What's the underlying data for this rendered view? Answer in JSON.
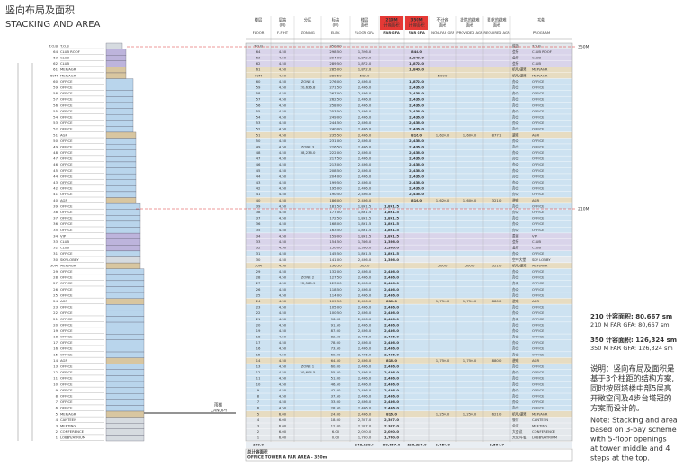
{
  "header": {
    "title": "竖向布局及面积",
    "subtitle": "STACKING AND AREA"
  },
  "table": {
    "columns": [
      {
        "cn": "楼层",
        "en": "FLOOR"
      },
      {
        "cn": "层高",
        "sub": "(M)",
        "en": "F-F HT"
      },
      {
        "cn": "分区",
        "en": "ZONING"
      },
      {
        "cn": "标高",
        "sub": "(M)",
        "en": "ELEV."
      },
      {
        "cn": "楼层",
        "sub": "面积",
        "en": "FLOOR GFA"
      },
      {
        "cn": "210M",
        "sub": "计容面积",
        "en": "FAR GFA",
        "red": true
      },
      {
        "cn": "350M",
        "sub": "计容面积",
        "en": "FAR GFA",
        "red": true
      },
      {
        "cn": "不计容",
        "sub": "面积",
        "en": "NON-FAR GFA"
      },
      {
        "cn": "提供的避难",
        "sub": "面积",
        "en": "PROVIDED AGR"
      },
      {
        "cn": "要求的避难",
        "sub": "面积",
        "en": "REQUIRED AGR"
      },
      {
        "cn": "功能",
        "en": "PROGRAM"
      }
    ],
    "rows": [
      [
        "T.O.B",
        null,
        null,
        "350.00",
        null,
        null,
        null,
        null,
        null,
        null,
        "塔顶",
        "T.O.B"
      ],
      [
        "64",
        "4.50",
        null,
        "298.50",
        "1,326.0",
        null,
        "844.0",
        null,
        null,
        null,
        "会所",
        "CLUB ROOF"
      ],
      [
        "63",
        "4.50",
        null,
        "294.00",
        "1,872.0",
        null,
        "1,840.0",
        null,
        null,
        null,
        "会所",
        "CLUB"
      ],
      [
        "62",
        "4.50",
        null,
        "289.50",
        "1,872.0",
        null,
        "1,872.0",
        null,
        null,
        null,
        "会所",
        "CLUB"
      ],
      [
        "61",
        "4.50",
        null,
        "285.00",
        "1,872.0",
        null,
        "1,840.0",
        null,
        null,
        null,
        "机电/避难",
        "MEP/AGR"
      ],
      [
        "60M",
        "4.50",
        null,
        "280.50",
        "500.0",
        null,
        null,
        "500.0",
        null,
        null,
        "机电/避难",
        "MEP/AGR"
      ],
      [
        "60",
        "4.50",
        "ZONE 4",
        "276.00",
        "2,436.0",
        null,
        "1,872.0",
        null,
        null,
        null,
        "办公",
        "OFFICE"
      ],
      [
        "59",
        "4.50",
        "20,636.8",
        "271.50",
        "2,436.0",
        null,
        "2,436.0",
        null,
        null,
        null,
        "办公",
        "OFFICE"
      ],
      [
        "58",
        "4.50",
        null,
        "267.00",
        "2,436.0",
        null,
        "2,436.0",
        null,
        null,
        null,
        "办公",
        "OFFICE"
      ],
      [
        "57",
        "4.50",
        null,
        "262.50",
        "2,436.0",
        null,
        "2,436.0",
        null,
        null,
        null,
        "办公",
        "OFFICE"
      ],
      [
        "56",
        "4.50",
        null,
        "258.00",
        "2,436.0",
        null,
        "2,436.0",
        null,
        null,
        null,
        "办公",
        "OFFICE"
      ],
      [
        "55",
        "4.50",
        null,
        "253.50",
        "2,436.0",
        null,
        "2,436.0",
        null,
        null,
        null,
        "办公",
        "OFFICE"
      ],
      [
        "54",
        "4.50",
        null,
        "249.00",
        "2,436.0",
        null,
        "2,436.0",
        null,
        null,
        null,
        "办公",
        "OFFICE"
      ],
      [
        "53",
        "4.50",
        null,
        "244.50",
        "2,436.0",
        null,
        "2,436.0",
        null,
        null,
        null,
        "办公",
        "OFFICE"
      ],
      [
        "52",
        "4.50",
        null,
        "240.00",
        "2,436.0",
        null,
        "2,436.0",
        null,
        null,
        null,
        "办公",
        "OFFICE"
      ],
      [
        "51",
        "4.50",
        null,
        "235.50",
        "2,436.0",
        null,
        "816.0",
        "1,620.0",
        "1,600.0",
        "877.1",
        "避难",
        "AGR"
      ],
      [
        "50",
        "4.50",
        null,
        "231.00",
        "2,436.0",
        null,
        "2,436.0",
        null,
        null,
        null,
        "办公",
        "OFFICE"
      ],
      [
        "49",
        "4.50",
        "ZONE 3",
        "226.50",
        "2,436.0",
        null,
        "2,436.0",
        null,
        null,
        null,
        "办公",
        "OFFICE"
      ],
      [
        "48",
        "4.50",
        "38,236.0",
        "222.00",
        "2,436.0",
        null,
        "2,436.0",
        null,
        null,
        null,
        "办公",
        "OFFICE"
      ],
      [
        "47",
        "4.50",
        null,
        "217.50",
        "2,436.0",
        null,
        "2,436.0",
        null,
        null,
        null,
        "办公",
        "OFFICE"
      ],
      [
        "46",
        "4.50",
        null,
        "213.00",
        "2,436.0",
        null,
        "2,436.0",
        null,
        null,
        null,
        "办公",
        "OFFICE"
      ],
      [
        "45",
        "4.50",
        null,
        "208.50",
        "2,436.0",
        null,
        "2,436.0",
        null,
        null,
        null,
        "办公",
        "OFFICE"
      ],
      [
        "44",
        "4.50",
        null,
        "204.00",
        "2,436.0",
        null,
        "2,436.0",
        null,
        null,
        null,
        "办公",
        "OFFICE"
      ],
      [
        "43",
        "4.50",
        null,
        "199.50",
        "2,436.0",
        null,
        "2,436.0",
        null,
        null,
        null,
        "办公",
        "OFFICE"
      ],
      [
        "42",
        "4.50",
        null,
        "195.00",
        "2,436.0",
        null,
        "2,436.0",
        null,
        null,
        null,
        "办公",
        "OFFICE"
      ],
      [
        "41",
        "4.50",
        null,
        "190.50",
        "2,436.0",
        null,
        "2,436.0",
        null,
        null,
        null,
        "办公",
        "OFFICE"
      ],
      [
        "40",
        "4.50",
        null,
        "186.00",
        "2,436.0",
        null,
        "816.0",
        "1,620.0",
        "1,600.0",
        "321.0",
        "避难",
        "AGR"
      ],
      [
        "39",
        "4.50",
        null,
        "181.50",
        "1,891.5",
        "1,891.5",
        null,
        null,
        null,
        null,
        "办公",
        "OFFICE"
      ],
      [
        "38",
        "4.50",
        null,
        "177.00",
        "1,891.5",
        "1,891.5",
        null,
        null,
        null,
        null,
        "办公",
        "OFFICE"
      ],
      [
        "37",
        "4.50",
        null,
        "172.50",
        "1,891.5",
        "1,891.5",
        null,
        null,
        null,
        null,
        "办公",
        "OFFICE"
      ],
      [
        "36",
        "4.50",
        null,
        "168.00",
        "1,891.5",
        "1,891.5",
        null,
        null,
        null,
        null,
        "办公",
        "OFFICE"
      ],
      [
        "35",
        "4.50",
        null,
        "163.50",
        "1,891.5",
        "1,891.5",
        null,
        null,
        null,
        null,
        "办公",
        "OFFICE"
      ],
      [
        "34",
        "4.50",
        null,
        "159.00",
        "1,891.5",
        "1,891.5",
        null,
        null,
        null,
        null,
        "贵宾",
        "VIP"
      ],
      [
        "33",
        "4.50",
        null,
        "154.50",
        "1,366.0",
        "1,366.0",
        null,
        null,
        null,
        null,
        "会所",
        "CLUB"
      ],
      [
        "32",
        "4.50",
        null,
        "150.00",
        "1,366.0",
        "1,366.0",
        null,
        null,
        null,
        null,
        "会所",
        "CLUB"
      ],
      [
        "31",
        "4.50",
        null,
        "145.50",
        "1,891.5",
        "1,891.5",
        null,
        null,
        null,
        null,
        "办公",
        "OFFICE"
      ],
      [
        "30",
        "4.50",
        null,
        "141.00",
        "2,436.0",
        "1,366.0",
        null,
        null,
        null,
        null,
        "空中大堂",
        "SKY LOBBY"
      ],
      [
        "30M",
        "4.50",
        null,
        "136.50",
        "500.0",
        null,
        null,
        "500.0",
        "500.0",
        "321.0",
        "机电/避难",
        "MEP/AGR"
      ],
      [
        "29",
        "4.50",
        null,
        "132.00",
        "2,436.0",
        "2,436.0",
        null,
        null,
        null,
        null,
        "办公",
        "OFFICE"
      ],
      [
        "28",
        "4.50",
        "ZONE 2",
        "127.50",
        "2,436.0",
        "2,436.0",
        null,
        null,
        null,
        null,
        "办公",
        "OFFICE"
      ],
      [
        "27",
        "4.50",
        "22,585.9",
        "123.00",
        "2,436.0",
        "2,436.0",
        null,
        null,
        null,
        null,
        "办公",
        "OFFICE"
      ],
      [
        "26",
        "4.50",
        null,
        "118.50",
        "2,436.0",
        "2,436.0",
        null,
        null,
        null,
        null,
        "办公",
        "OFFICE"
      ],
      [
        "25",
        "4.50",
        null,
        "114.00",
        "2,436.0",
        "2,436.0",
        null,
        null,
        null,
        null,
        "办公",
        "OFFICE"
      ],
      [
        "24",
        "4.50",
        null,
        "109.50",
        "2,436.0",
        "816.0",
        null,
        "1,750.0",
        "1,750.0",
        "880.0",
        "避难",
        "AGR"
      ],
      [
        "23",
        "4.50",
        null,
        "105.00",
        "2,436.0",
        "2,436.0",
        null,
        null,
        null,
        null,
        "办公",
        "OFFICE"
      ],
      [
        "22",
        "4.50",
        null,
        "100.50",
        "2,436.0",
        "2,436.0",
        null,
        null,
        null,
        null,
        "办公",
        "OFFICE"
      ],
      [
        "21",
        "4.50",
        null,
        "96.00",
        "2,436.0",
        "2,436.0",
        null,
        null,
        null,
        null,
        "办公",
        "OFFICE"
      ],
      [
        "20",
        "4.50",
        null,
        "91.50",
        "2,436.0",
        "2,436.0",
        null,
        null,
        null,
        null,
        "办公",
        "OFFICE"
      ],
      [
        "19",
        "4.50",
        null,
        "87.00",
        "2,436.0",
        "2,436.0",
        null,
        null,
        null,
        null,
        "办公",
        "OFFICE"
      ],
      [
        "18",
        "4.50",
        null,
        "82.50",
        "2,436.0",
        "2,436.0",
        null,
        null,
        null,
        null,
        "办公",
        "OFFICE"
      ],
      [
        "17",
        "4.50",
        null,
        "78.00",
        "2,436.0",
        "2,436.0",
        null,
        null,
        null,
        null,
        "办公",
        "OFFICE"
      ],
      [
        "16",
        "4.50",
        null,
        "73.50",
        "2,436.0",
        "2,436.0",
        null,
        null,
        null,
        null,
        "办公",
        "OFFICE"
      ],
      [
        "15",
        "4.50",
        null,
        "69.00",
        "2,436.0",
        "2,436.0",
        null,
        null,
        null,
        null,
        "办公",
        "OFFICE"
      ],
      [
        "14",
        "4.50",
        null,
        "64.50",
        "2,436.0",
        "816.0",
        null,
        "1,750.0",
        "1,750.0",
        "880.0",
        "避难",
        "AGR"
      ],
      [
        "13",
        "4.50",
        "ZONE 1",
        "60.00",
        "2,436.0",
        "2,436.0",
        null,
        null,
        null,
        null,
        "办公",
        "OFFICE"
      ],
      [
        "12",
        "4.50",
        "20,604.5",
        "55.50",
        "2,436.0",
        "2,436.0",
        null,
        null,
        null,
        null,
        "办公",
        "OFFICE"
      ],
      [
        "11",
        "4.50",
        null,
        "51.00",
        "2,436.0",
        "2,436.0",
        null,
        null,
        null,
        null,
        "办公",
        "OFFICE"
      ],
      [
        "10",
        "4.50",
        null,
        "46.50",
        "2,436.0",
        "2,436.0",
        null,
        null,
        null,
        null,
        "办公",
        "OFFICE"
      ],
      [
        "9",
        "4.50",
        null,
        "42.00",
        "2,436.0",
        "2,436.0",
        null,
        null,
        null,
        null,
        "办公",
        "OFFICE"
      ],
      [
        "8",
        "4.50",
        null,
        "37.50",
        "2,436.0",
        "2,436.0",
        null,
        null,
        null,
        null,
        "办公",
        "OFFICE"
      ],
      [
        "7",
        "4.50",
        null,
        "33.00",
        "2,436.0",
        "2,436.0",
        null,
        null,
        null,
        null,
        "办公",
        "OFFICE"
      ],
      [
        "6",
        "4.50",
        null,
        "28.50",
        "2,436.0",
        "2,436.0",
        null,
        null,
        null,
        null,
        "办公",
        "OFFICE"
      ],
      [
        "5",
        "6.00",
        null,
        "24.00",
        "2,436.0",
        "816.0",
        null,
        "1,250.0",
        "1,250.0",
        "621.0",
        "机电/避难",
        "MEP/AGR"
      ],
      [
        "4",
        "6.00",
        null,
        "18.00",
        "2,307.0",
        "2,307.0",
        null,
        null,
        null,
        null,
        "餐厅",
        "CANTEEN"
      ],
      [
        "3",
        "6.00",
        null,
        "12.00",
        "2,307.0",
        "2,307.0",
        null,
        null,
        null,
        null,
        "会议",
        "MEETING"
      ],
      [
        "2",
        "6.00",
        null,
        "6.00",
        "2,020.0",
        "2,020.0",
        null,
        null,
        null,
        null,
        "大会议",
        "CONFERENCE"
      ],
      [
        "1",
        "6.00",
        null,
        "0.00",
        "1,760.0",
        "1,760.0",
        null,
        null,
        null,
        null,
        "大堂/中庭",
        "LOBBY/ATRIUM"
      ]
    ],
    "total": [
      "350.0",
      null,
      null,
      null,
      "248,338.0",
      "80,667.0",
      "126,324.0",
      "8,450.0",
      null,
      "3,564.7",
      null
    ],
    "footer": [
      "总计容面积",
      "OFFICE TOWER A FAR AREA - 350m"
    ]
  },
  "diagram": {
    "canopy_cn": "雨棚",
    "canopy_en": "CANOPY",
    "levels": [
      "350M",
      "210M"
    ]
  },
  "notes": {
    "far210_cn": "210 计容面积: 80,667 sm",
    "far210_en": "210 M FAR GFA: 80,667 sm",
    "far350_cn": "350 计容面积: 126,324 sm",
    "far350_en": "350 M FAR GFA: 126,324 sm",
    "desc_cn": [
      "说明：竖向布局及面积是",
      "基于3个柱距的结构方案,",
      "同时按照塔楼中部5层高",
      "开敞空间及4步台塔冠的",
      "方案而设计的。"
    ],
    "desc_en": [
      "Note: Stacking and area",
      "based on 3-bay scheme",
      "with 5-floor openings",
      "at tower middle and 4",
      "steps at the top."
    ]
  }
}
